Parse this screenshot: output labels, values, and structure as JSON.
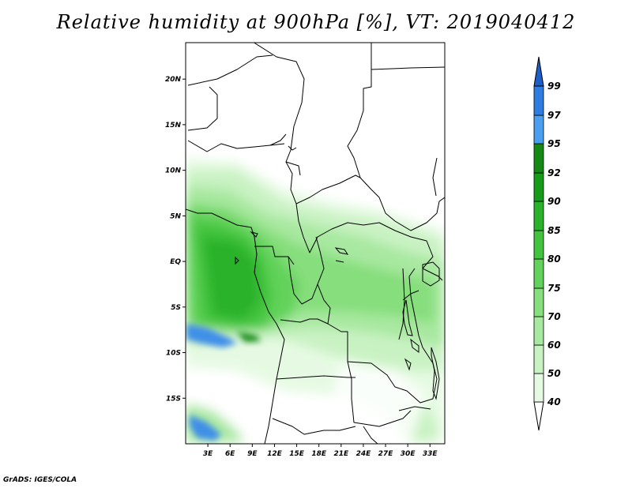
{
  "title": "Relative humidity at 900hPa [%], VT: 2019040412",
  "credit": "GrADS: IGES/COLA",
  "map": {
    "lon_range": [
      0,
      35
    ],
    "lat_range": [
      -20,
      24
    ],
    "lat_ticks": [
      {
        "lat": 20,
        "label": "20N"
      },
      {
        "lat": 15,
        "label": "15N"
      },
      {
        "lat": 10,
        "label": "10N"
      },
      {
        "lat": 5,
        "label": "5N"
      },
      {
        "lat": 0,
        "label": "EQ"
      },
      {
        "lat": -5,
        "label": "5S"
      },
      {
        "lat": -10,
        "label": "10S"
      },
      {
        "lat": -15,
        "label": "15S"
      }
    ],
    "lon_ticks": [
      {
        "lon": 3,
        "label": "3E"
      },
      {
        "lon": 6,
        "label": "6E"
      },
      {
        "lon": 9,
        "label": "9E"
      },
      {
        "lon": 12,
        "label": "12E"
      },
      {
        "lon": 15,
        "label": "15E"
      },
      {
        "lon": 18,
        "label": "18E"
      },
      {
        "lon": 21,
        "label": "21E"
      },
      {
        "lon": 24,
        "label": "24E"
      },
      {
        "lon": 27,
        "label": "27E"
      },
      {
        "lon": 30,
        "label": "30E"
      },
      {
        "lon": 33,
        "label": "33E"
      }
    ]
  },
  "colorbar": {
    "labels": [
      "40",
      "50",
      "60",
      "70",
      "75",
      "80",
      "85",
      "90",
      "92",
      "95",
      "97",
      "99"
    ],
    "colors": [
      "#ffffff",
      "#e6fae3",
      "#c9f2c3",
      "#a8e8a0",
      "#86de7c",
      "#62d25a",
      "#42c43e",
      "#2ab22a",
      "#169c18",
      "#148a14",
      "#4b9ff0",
      "#2f7de0",
      "#1d5fc8"
    ]
  }
}
